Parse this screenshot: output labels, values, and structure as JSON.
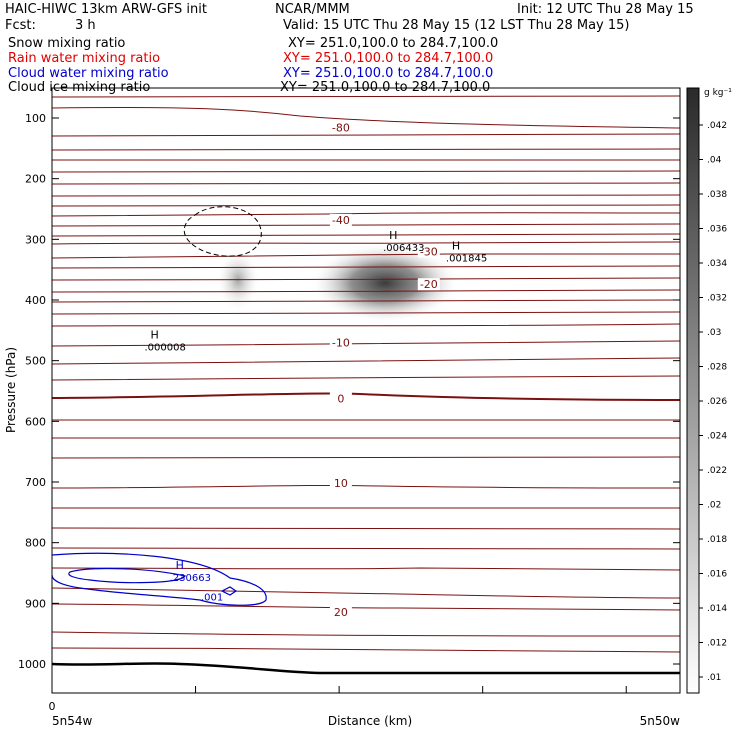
{
  "header": {
    "model": "HAIC-HIWC 13km ARW-GFS init",
    "org": "NCAR/MMM",
    "init": "Init: 12 UTC Thu 28 May 15",
    "fcst_label": "Fcst:",
    "fcst_value": "3 h",
    "valid": "Valid: 15 UTC Thu 28 May 15 (12 LST Thu 28 May 15)"
  },
  "fields": [
    {
      "name": "Snow mixing ratio",
      "xy": "XY= 251.0,100.0 to 284.7,100.0",
      "color": "#000000"
    },
    {
      "name": "Rain water mixing ratio",
      "xy": "XY= 251.0,100.0 to 284.7,100.0",
      "color": "#e00000"
    },
    {
      "name": "Cloud water mixing ratio",
      "xy": "XY= 251.0,100.0 to 284.7,100.0",
      "color": "#0000cc"
    },
    {
      "name": "Cloud ice mixing ratio",
      "xy": "XY= 251.0,100.0 to 284.7,100.0",
      "color": "#000000"
    }
  ],
  "chart_data": {
    "type": "contour cross-section",
    "ylabel": "Pressure (hPa)",
    "xlabel": "Distance (km)",
    "x_start_label": "5n54w",
    "x_end_label": "5n50w",
    "x_origin_tick": "0",
    "yticks": [
      100,
      200,
      300,
      400,
      500,
      600,
      700,
      800,
      900,
      1000
    ],
    "ylim": [
      1050,
      50
    ],
    "colorbar": {
      "unit": "g kg⁻¹",
      "ticks": [
        ".01",
        ".012",
        ".014",
        ".016",
        ".018",
        ".02",
        ".022",
        ".024",
        ".026",
        ".028",
        ".03",
        ".032",
        ".034",
        ".036",
        ".038",
        ".04",
        ".042"
      ]
    },
    "temperature_contour_labels": [
      {
        "label": "-80",
        "x_frac": 0.46,
        "p": 116
      },
      {
        "label": "-40",
        "x_frac": 0.46,
        "p": 268
      },
      {
        "label": "-30",
        "x_frac": 0.6,
        "p": 320
      },
      {
        "label": "-20",
        "x_frac": 0.6,
        "p": 374
      },
      {
        "label": "-10",
        "x_frac": 0.46,
        "p": 470
      },
      {
        "label": "0",
        "x_frac": 0.46,
        "p": 562
      },
      {
        "label": "10",
        "x_frac": 0.46,
        "p": 702
      },
      {
        "label": "20",
        "x_frac": 0.46,
        "p": 914
      }
    ],
    "maxima": [
      {
        "mark": "H",
        "value": ".006433",
        "x_frac": 0.54,
        "p": 316,
        "color": "#000000"
      },
      {
        "mark": "H",
        "value": ".001845",
        "x_frac": 0.64,
        "p": 333,
        "color": "#000000"
      },
      {
        "mark": "H",
        "value": ".000008",
        "x_frac": 0.16,
        "p": 480,
        "color": "#000000"
      },
      {
        "mark": "H",
        "value": ".230663",
        "x_frac": 0.2,
        "p": 860,
        "color": "#0000cc"
      },
      {
        "mark": "",
        "value": ".001",
        "x_frac": 0.25,
        "p": 892,
        "color": "#0000cc"
      }
    ],
    "grid": false
  }
}
